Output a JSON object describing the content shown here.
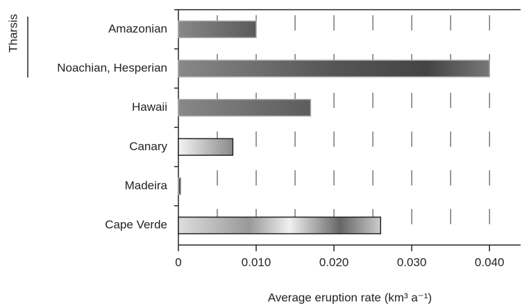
{
  "chart_data": {
    "type": "hbar",
    "xlabel": "Average eruption rate (km³ a⁻¹)",
    "group": {
      "label": "Tharsis"
    },
    "categories": [
      "Amazonian",
      "Noachian, Hesperian",
      "Hawaii",
      "Canary",
      "Madeira",
      "Cape Verde"
    ],
    "values": [
      0.01,
      0.04,
      0.017,
      0.007,
      0.0003,
      0.026
    ],
    "xlim": [
      0,
      0.044
    ],
    "xticks": [
      0,
      {
        "value": 0.01,
        "label": "0.010"
      },
      {
        "value": 0.02,
        "label": "0.020"
      },
      {
        "value": 0.03,
        "label": "0.030"
      },
      {
        "value": 0.04,
        "label": "0.040"
      }
    ],
    "xgrid": [
      0.005,
      0.01,
      0.015,
      0.02,
      0.025,
      0.03,
      0.035,
      0.04
    ],
    "grid": true
  }
}
